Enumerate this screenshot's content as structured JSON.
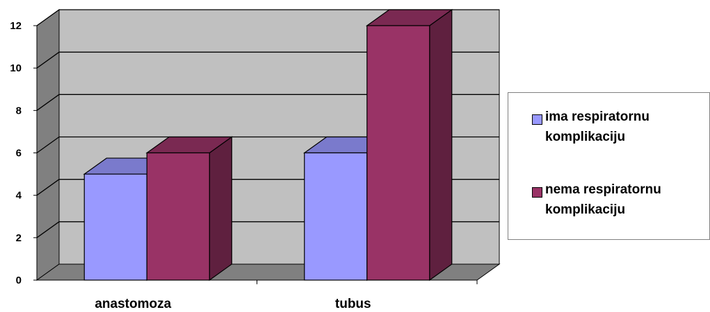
{
  "chart_data": {
    "type": "bar",
    "categories": [
      "anastomoza",
      "tubus"
    ],
    "series": [
      {
        "name": "ima respiratornu komplikaciju",
        "values": [
          5,
          6
        ],
        "color": "#9999ff"
      },
      {
        "name": "nema respiratornu komplikaciju",
        "values": [
          6,
          12
        ],
        "color": "#993366"
      }
    ],
    "ylim": [
      0,
      12
    ],
    "yticks": [
      "0",
      "2",
      "4",
      "6",
      "8",
      "10",
      "12"
    ],
    "grid": true,
    "legend_position": "right",
    "style": "3d-clustered-column",
    "wall_color": "#c0c0c0",
    "floor_color": "#808080"
  }
}
